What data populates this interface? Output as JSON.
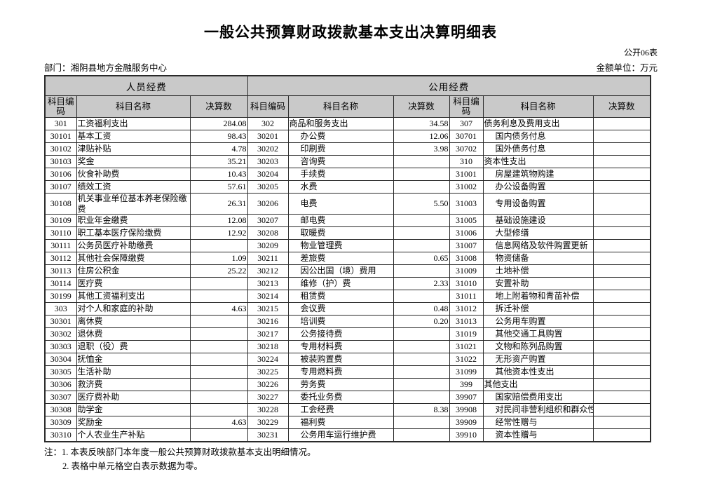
{
  "title": "一般公共预算财政拨款基本支出决算明细表",
  "table_code": "公开06表",
  "department": "部门：湘阴县地方金融服务中心",
  "unit": "金额单位：万元",
  "table": {
    "group_headers": [
      "人员经费",
      "公用经费"
    ],
    "col_headers": [
      "科目编码",
      "科目名称",
      "决算数"
    ],
    "rows": [
      [
        "301",
        "工资福利支出",
        "284.08",
        "302",
        "商品和服务支出",
        "34.58",
        "307",
        "债务利息及费用支出",
        ""
      ],
      [
        "30101",
        "基本工资",
        "98.43",
        "30201",
        "办公费",
        "12.06",
        "30701",
        "国内债务付息",
        ""
      ],
      [
        "30102",
        "津贴补贴",
        "4.78",
        "30202",
        "印刷费",
        "3.98",
        "30702",
        "国外债务付息",
        ""
      ],
      [
        "30103",
        "奖金",
        "35.21",
        "30203",
        "咨询费",
        "",
        "310",
        "资本性支出",
        ""
      ],
      [
        "30106",
        "伙食补助费",
        "10.43",
        "30204",
        "手续费",
        "",
        "31001",
        "房屋建筑物购建",
        ""
      ],
      [
        "30107",
        "绩效工资",
        "57.61",
        "30205",
        "水费",
        "",
        "31002",
        "办公设备购置",
        ""
      ],
      [
        "30108",
        "机关事业单位基本养老保险缴费",
        "26.31",
        "30206",
        "电费",
        "5.50",
        "31003",
        "专用设备购置",
        ""
      ],
      [
        "30109",
        "职业年金缴费",
        "12.08",
        "30207",
        "邮电费",
        "",
        "31005",
        "基础设施建设",
        ""
      ],
      [
        "30110",
        "职工基本医疗保险缴费",
        "12.92",
        "30208",
        "取暖费",
        "",
        "31006",
        "大型修缮",
        ""
      ],
      [
        "30111",
        "公务员医疗补助缴费",
        "",
        "30209",
        "物业管理费",
        "",
        "31007",
        "信息网络及软件购置更新",
        ""
      ],
      [
        "30112",
        "其他社会保障缴费",
        "1.09",
        "30211",
        "差旅费",
        "0.65",
        "31008",
        "物资储备",
        ""
      ],
      [
        "30113",
        "住房公积金",
        "25.22",
        "30212",
        "因公出国（境）费用",
        "",
        "31009",
        "土地补偿",
        ""
      ],
      [
        "30114",
        "医疗费",
        "",
        "30213",
        "维修（护）费",
        "2.33",
        "31010",
        "安置补助",
        ""
      ],
      [
        "30199",
        "其他工资福利支出",
        "",
        "30214",
        "租赁费",
        "",
        "31011",
        "地上附着物和青苗补偿",
        ""
      ],
      [
        "303",
        "对个人和家庭的补助",
        "4.63",
        "30215",
        "会议费",
        "0.48",
        "31012",
        "拆迁补偿",
        ""
      ],
      [
        "30301",
        "离休费",
        "",
        "30216",
        "培训费",
        "0.20",
        "31013",
        "公务用车购置",
        ""
      ],
      [
        "30302",
        "退休费",
        "",
        "30217",
        "公务接待费",
        "",
        "31019",
        "其他交通工具购置",
        ""
      ],
      [
        "30303",
        "退职（役）费",
        "",
        "30218",
        "专用材料费",
        "",
        "31021",
        "文物和陈列品购置",
        ""
      ],
      [
        "30304",
        "抚恤金",
        "",
        "30224",
        "被装购置费",
        "",
        "31022",
        "无形资产购置",
        ""
      ],
      [
        "30305",
        "生活补助",
        "",
        "30225",
        "专用燃料费",
        "",
        "31099",
        "其他资本性支出",
        ""
      ],
      [
        "30306",
        "救济费",
        "",
        "30226",
        "劳务费",
        "",
        "399",
        "其他支出",
        ""
      ],
      [
        "30307",
        "医疗费补助",
        "",
        "30227",
        "委托业务费",
        "",
        "39907",
        "国家赔偿费用支出",
        ""
      ],
      [
        "30308",
        "助学金",
        "",
        "30228",
        "工会经费",
        "8.38",
        "39908",
        "对民间非营利组织和群众性自",
        ""
      ],
      [
        "30309",
        "奖励金",
        "4.63",
        "30229",
        "福利费",
        "",
        "39909",
        "经常性赠与",
        ""
      ],
      [
        "30310",
        "个人农业生产补贴",
        "",
        "30231",
        "公务用车运行维护费",
        "",
        "39910",
        "资本性赠与",
        ""
      ]
    ]
  },
  "notes": {
    "line1": "注：1. 本表反映部门本年度一般公共预算财政拨款基本支出明细情况。",
    "line2": "2. 表格中单元格空白表示数据为零。"
  }
}
